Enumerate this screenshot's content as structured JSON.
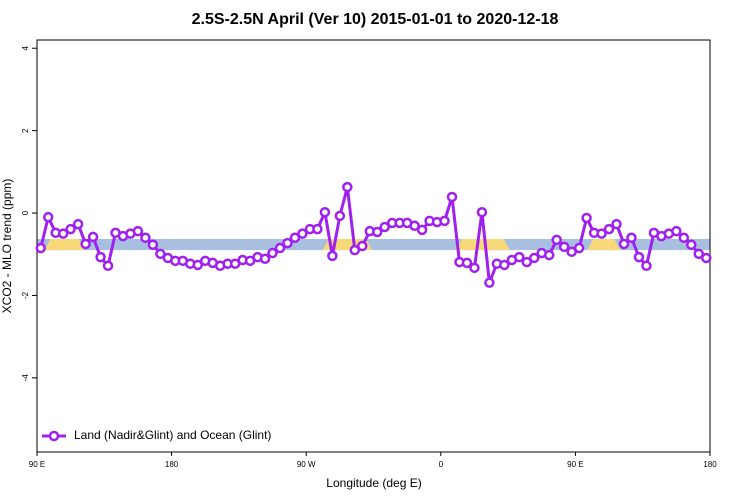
{
  "chart_data": {
    "type": "line",
    "title": "2.5S-2.5N April (Ver 10)   2015-01-01 to 2020-12-18",
    "x_label": "Longitude (deg E)",
    "y_label": "XCO2 - MLO trend (ppm)",
    "xlim": [
      90,
      540
    ],
    "xticks": [
      {
        "value": 90,
        "label": "90 E"
      },
      180,
      {
        "value": 270,
        "label": "90 W"
      },
      {
        "value": 360,
        "label": "0"
      },
      {
        "value": 450,
        "label": "90 E"
      },
      {
        "value": 540,
        "label": "180"
      }
    ],
    "ylim": [
      -5.8,
      4.2
    ],
    "yticks": [
      -4,
      -2,
      0,
      2,
      4
    ],
    "legend": "bottom-left",
    "band": {
      "range": [
        -0.9,
        -0.63
      ],
      "color": "#a9bfe0",
      "land_color": "#f8d97a",
      "land": [
        [
          95,
          122
        ],
        [
          281,
          314
        ],
        [
          370,
          406
        ],
        [
          458,
          480
        ]
      ]
    },
    "x": [
      92.5,
      97.5,
      102.5,
      107.5,
      112.5,
      117.5,
      122.5,
      127.5,
      132.5,
      137.5,
      142.5,
      147.5,
      152.5,
      157.5,
      162.5,
      167.5,
      172.5,
      177.5,
      182.5,
      187.5,
      192.5,
      197.5,
      202.5,
      207.5,
      212.5,
      217.5,
      222.5,
      227.5,
      232.5,
      237.5,
      242.5,
      247.5,
      252.5,
      257.5,
      262.5,
      267.5,
      272.5,
      277.5,
      282.5,
      287.5,
      292.5,
      297.5,
      302.5,
      307.5,
      312.5,
      317.5,
      322.5,
      327.5,
      332.5,
      337.5,
      342.5,
      347.5,
      352.5,
      357.5,
      362.5,
      367.5,
      372.5,
      377.5,
      382.5,
      387.5,
      392.5,
      397.5,
      402.5,
      407.5,
      412.5,
      417.5,
      422.5,
      427.5,
      432.5,
      437.5,
      442.5,
      447.5,
      452.5,
      457.5,
      462.5,
      467.5,
      472.5,
      477.5,
      482.5,
      487.5,
      492.5,
      497.5,
      502.5,
      507.5,
      512.5,
      517.5,
      522.5,
      527.5,
      532.5,
      537.5
    ],
    "series": [
      {
        "name": "Land (Nadir&Glint) and Ocean (Glint)",
        "color": "#a020f0",
        "values": [
          -0.85,
          -0.1,
          -0.48,
          -0.5,
          -0.39,
          -0.27,
          -0.75,
          -0.58,
          -1.07,
          -1.28,
          -0.48,
          -0.56,
          -0.5,
          -0.44,
          -0.6,
          -0.77,
          -0.99,
          -1.09,
          -1.16,
          -1.16,
          -1.23,
          -1.26,
          -1.16,
          -1.21,
          -1.28,
          -1.23,
          -1.23,
          -1.14,
          -1.16,
          -1.07,
          -1.11,
          -0.97,
          -0.85,
          -0.73,
          -0.6,
          -0.5,
          -0.39,
          -0.39,
          0.02,
          -1.04,
          -0.07,
          0.63,
          -0.9,
          -0.8,
          -0.44,
          -0.46,
          -0.34,
          -0.24,
          -0.24,
          -0.24,
          -0.31,
          -0.41,
          -0.19,
          -0.22,
          -0.19,
          0.39,
          -1.19,
          -1.21,
          -1.33,
          0.02,
          -1.69,
          -1.23,
          -1.26,
          -1.14,
          -1.07,
          -1.19,
          -1.09,
          -0.97,
          -1.02,
          -0.65,
          -0.82,
          -0.94,
          -0.85,
          -0.12,
          -0.48,
          -0.5,
          -0.39,
          -0.27,
          -0.75,
          -0.6,
          -1.07,
          -1.28,
          -0.48,
          -0.56,
          -0.5,
          -0.44,
          -0.6,
          -0.77,
          -0.99,
          -1.09
        ]
      }
    ]
  }
}
